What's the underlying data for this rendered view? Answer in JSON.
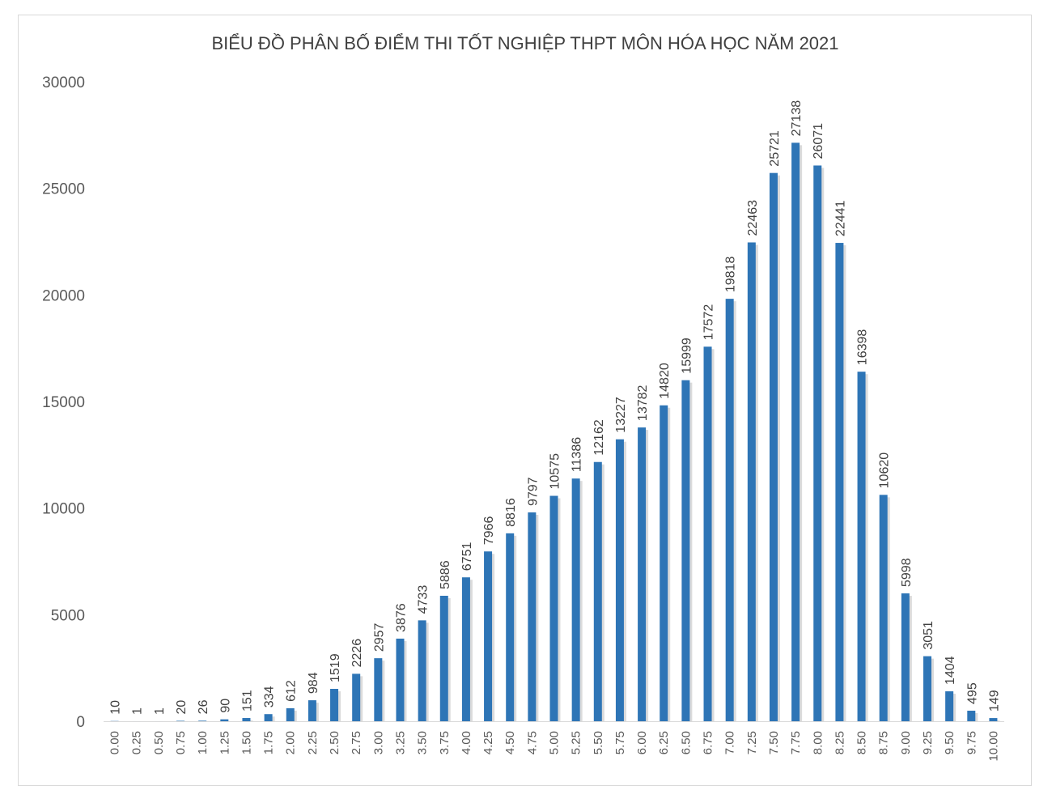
{
  "chart_data": {
    "type": "bar",
    "title": "BIỂU ĐỒ PHÂN BỐ ĐIỂM THI TỐT NGHIỆP THPT MÔN HÓA HỌC NĂM 2021",
    "xlabel": "",
    "ylabel": "",
    "ylim": [
      0,
      30000
    ],
    "yticks": [
      "0",
      "5000",
      "10000",
      "15000",
      "20000",
      "25000",
      "30000"
    ],
    "categories": [
      "0.00",
      "0.25",
      "0.50",
      "0.75",
      "1.00",
      "1.25",
      "1.50",
      "1.75",
      "2.00",
      "2.25",
      "2.50",
      "2.75",
      "3.00",
      "3.25",
      "3.50",
      "3.75",
      "4.00",
      "4.25",
      "4.50",
      "4.75",
      "5.00",
      "5.25",
      "5.50",
      "5.75",
      "6.00",
      "6.25",
      "6.50",
      "6.75",
      "7.00",
      "7.25",
      "7.50",
      "7.75",
      "8.00",
      "8.25",
      "8.50",
      "8.75",
      "9.00",
      "9.25",
      "9.50",
      "9.75",
      "10.00"
    ],
    "values": [
      10,
      1,
      1,
      20,
      26,
      90,
      151,
      334,
      612,
      984,
      1519,
      2226,
      2957,
      3876,
      4733,
      5886,
      6751,
      7966,
      8816,
      9797,
      10575,
      11386,
      12162,
      13227,
      13782,
      14820,
      15999,
      17572,
      19818,
      22463,
      25721,
      27138,
      26071,
      22441,
      16398,
      10620,
      5998,
      3051,
      1404,
      495,
      149
    ],
    "data_labels": [
      "10",
      "1",
      "1",
      "20",
      "26",
      "90",
      "151",
      "334",
      "612",
      "984",
      "1519",
      "2226",
      "2957",
      "3876",
      "4733",
      "5886",
      "6751",
      "7966",
      "8816",
      "9797",
      "10575",
      "11386",
      "12162",
      "13227",
      "13782",
      "14820",
      "15999",
      "17572",
      "19818",
      "22463",
      "25721",
      "27138",
      "26071",
      "22441",
      "16398",
      "10620",
      "5998",
      "3051",
      "1404",
      "495",
      "149"
    ],
    "grid": false,
    "legend": "none",
    "bar_color": "#2e75b6",
    "axis_color": "#d9d9d9"
  }
}
